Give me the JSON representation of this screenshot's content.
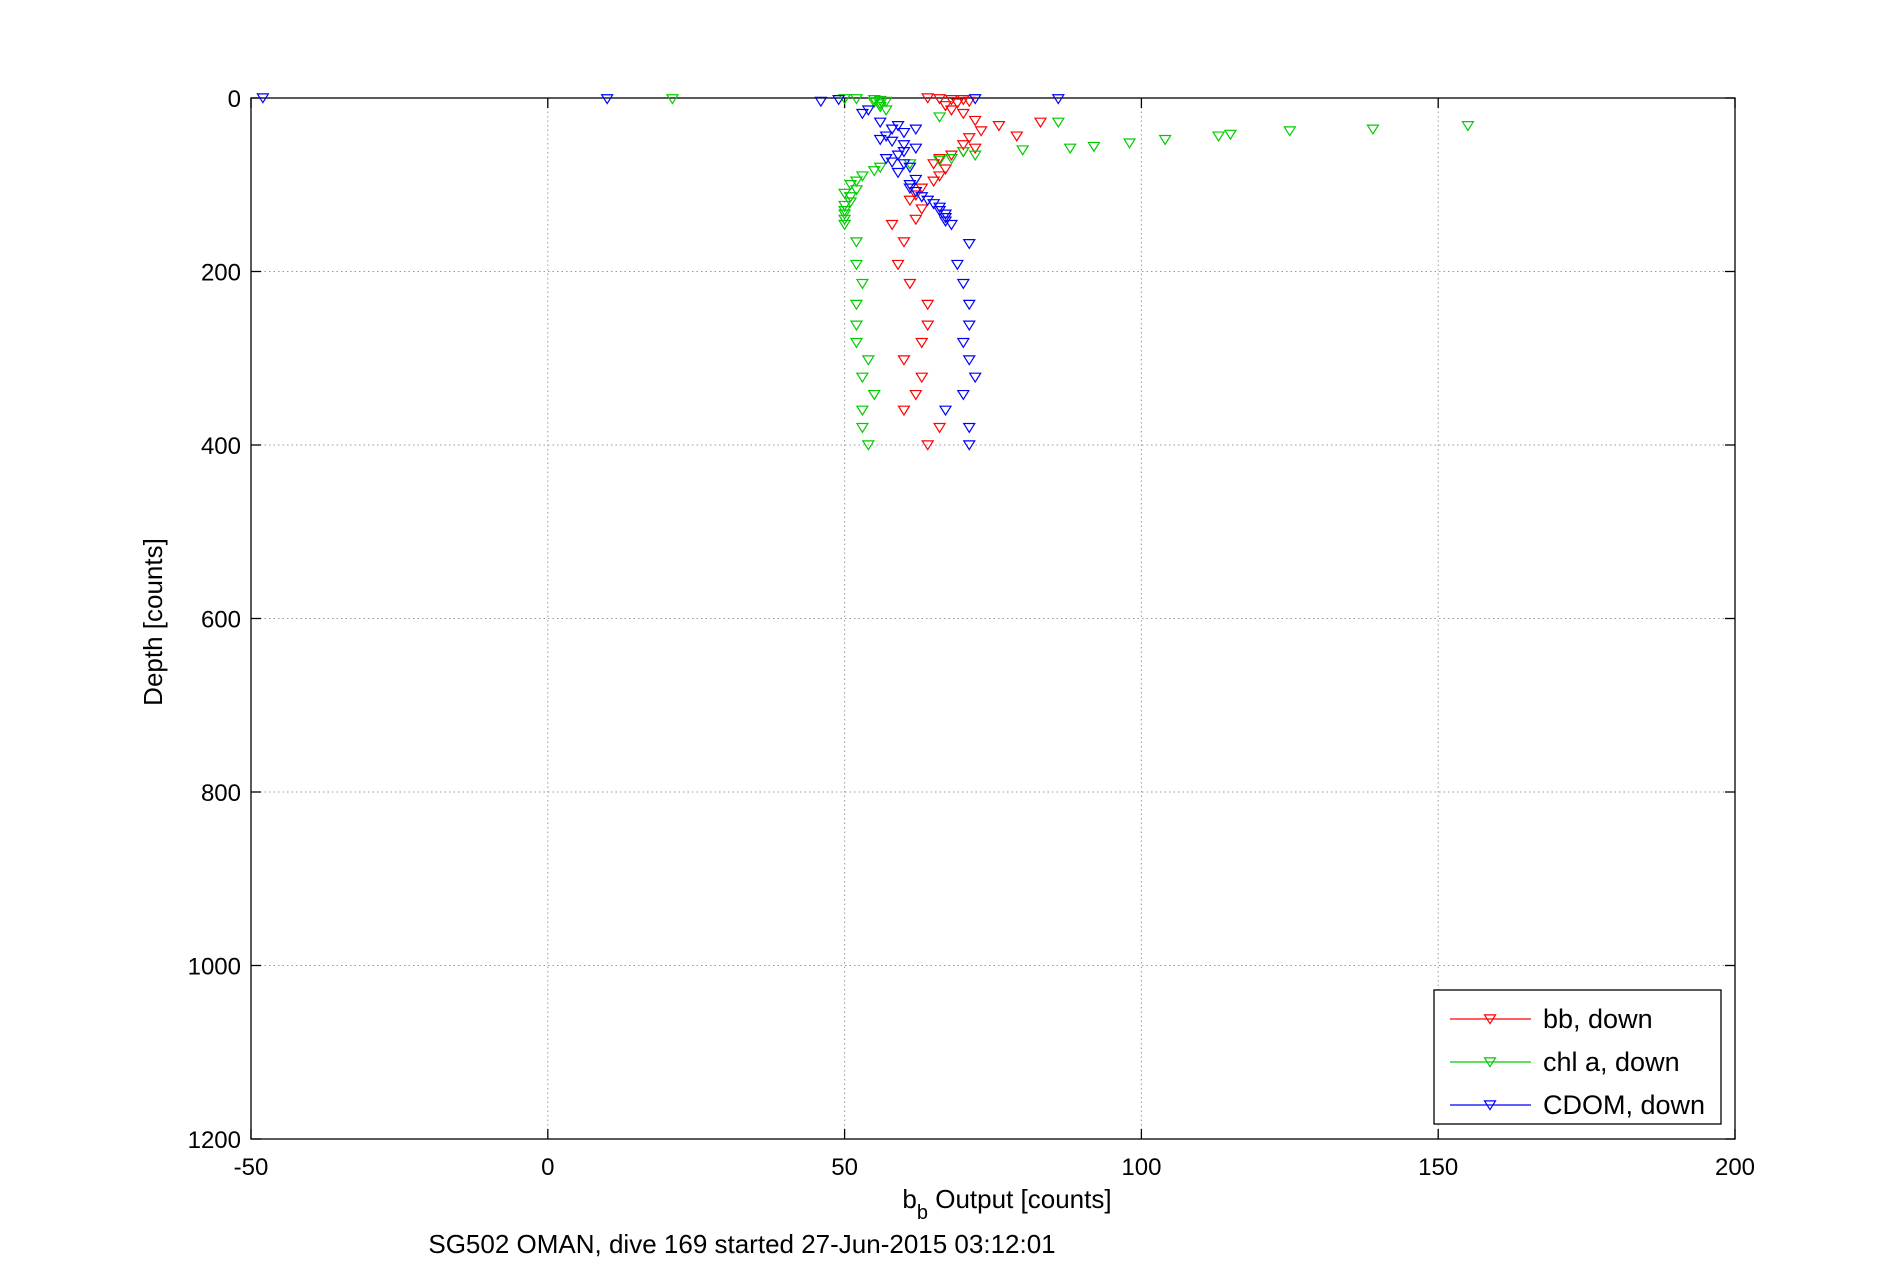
{
  "chart_data": {
    "type": "scatter",
    "title": "",
    "subtitle": "SG502 OMAN, dive 169 started 27-Jun-2015 03:12:01",
    "xlabel_main": "b",
    "xlabel_sub": "b",
    "xlabel_rest": " Output [counts]",
    "ylabel": "Depth [counts]",
    "xlim": [
      -50,
      200
    ],
    "ylim": [
      0,
      1200
    ],
    "y_reversed": true,
    "x_ticks": [
      -50,
      0,
      50,
      100,
      150,
      200
    ],
    "y_ticks": [
      0,
      200,
      400,
      600,
      800,
      1000,
      1200
    ],
    "grid": true,
    "legend_position": "bottom-right",
    "marker": "down-triangle",
    "series": [
      {
        "name": "bb, down",
        "color": "#ff0000",
        "points": [
          [
            64,
            0
          ],
          [
            66,
            1
          ],
          [
            68,
            2
          ],
          [
            70,
            2
          ],
          [
            71,
            4
          ],
          [
            69,
            6
          ],
          [
            67,
            9
          ],
          [
            68,
            14
          ],
          [
            70,
            18
          ],
          [
            72,
            26
          ],
          [
            73,
            38
          ],
          [
            71,
            46
          ],
          [
            70,
            54
          ],
          [
            72,
            58
          ],
          [
            70,
            62
          ],
          [
            68,
            66
          ],
          [
            66,
            70
          ],
          [
            65,
            76
          ],
          [
            67,
            82
          ],
          [
            66,
            90
          ],
          [
            65,
            96
          ],
          [
            63,
            104
          ],
          [
            62,
            112
          ],
          [
            61,
            118
          ],
          [
            63,
            128
          ],
          [
            62,
            140
          ],
          [
            58,
            146
          ],
          [
            60,
            166
          ],
          [
            59,
            192
          ],
          [
            61,
            214
          ],
          [
            64,
            238
          ],
          [
            64,
            262
          ],
          [
            63,
            282
          ],
          [
            60,
            302
          ],
          [
            63,
            322
          ],
          [
            62,
            342
          ],
          [
            60,
            360
          ],
          [
            66,
            380
          ],
          [
            64,
            400
          ],
          [
            76,
            32
          ],
          [
            79,
            44
          ],
          [
            83,
            28
          ]
        ]
      },
      {
        "name": "chl a, down",
        "color": "#00cc00",
        "points": [
          [
            21,
            1
          ],
          [
            50,
            1
          ],
          [
            52,
            1
          ],
          [
            55,
            2
          ],
          [
            56,
            3
          ],
          [
            57,
            4
          ],
          [
            55,
            5
          ],
          [
            56,
            7
          ],
          [
            56,
            10
          ],
          [
            57,
            14
          ],
          [
            66,
            22
          ],
          [
            86,
            28
          ],
          [
            155,
            32
          ],
          [
            139,
            36
          ],
          [
            125,
            38
          ],
          [
            115,
            42
          ],
          [
            113,
            44
          ],
          [
            104,
            48
          ],
          [
            98,
            52
          ],
          [
            92,
            56
          ],
          [
            88,
            58
          ],
          [
            80,
            60
          ],
          [
            70,
            62
          ],
          [
            72,
            66
          ],
          [
            68,
            70
          ],
          [
            66,
            72
          ],
          [
            61,
            76
          ],
          [
            56,
            80
          ],
          [
            55,
            84
          ],
          [
            53,
            90
          ],
          [
            52,
            96
          ],
          [
            51,
            100
          ],
          [
            52,
            106
          ],
          [
            50,
            110
          ],
          [
            51,
            114
          ],
          [
            51,
            120
          ],
          [
            50,
            124
          ],
          [
            50,
            130
          ],
          [
            50,
            134
          ],
          [
            50,
            140
          ],
          [
            50,
            146
          ],
          [
            52,
            166
          ],
          [
            52,
            192
          ],
          [
            53,
            214
          ],
          [
            52,
            238
          ],
          [
            52,
            262
          ],
          [
            52,
            282
          ],
          [
            54,
            302
          ],
          [
            53,
            322
          ],
          [
            55,
            342
          ],
          [
            53,
            360
          ],
          [
            53,
            380
          ],
          [
            54,
            400
          ]
        ]
      },
      {
        "name": "CDOM, down",
        "color": "#0000ff",
        "points": [
          [
            -48,
            0
          ],
          [
            10,
            1
          ],
          [
            46,
            4
          ],
          [
            49,
            2
          ],
          [
            72,
            1
          ],
          [
            86,
            1
          ],
          [
            54,
            14
          ],
          [
            53,
            18
          ],
          [
            56,
            28
          ],
          [
            59,
            32
          ],
          [
            58,
            36
          ],
          [
            62,
            36
          ],
          [
            60,
            40
          ],
          [
            57,
            44
          ],
          [
            56,
            48
          ],
          [
            58,
            50
          ],
          [
            60,
            54
          ],
          [
            62,
            58
          ],
          [
            60,
            62
          ],
          [
            59,
            66
          ],
          [
            57,
            70
          ],
          [
            58,
            74
          ],
          [
            60,
            76
          ],
          [
            61,
            80
          ],
          [
            59,
            86
          ],
          [
            62,
            94
          ],
          [
            61,
            100
          ],
          [
            61,
            104
          ],
          [
            62,
            108
          ],
          [
            63,
            114
          ],
          [
            64,
            118
          ],
          [
            65,
            122
          ],
          [
            66,
            126
          ],
          [
            66,
            130
          ],
          [
            67,
            134
          ],
          [
            67,
            138
          ],
          [
            67,
            142
          ],
          [
            68,
            146
          ],
          [
            71,
            168
          ],
          [
            69,
            192
          ],
          [
            70,
            214
          ],
          [
            71,
            238
          ],
          [
            71,
            262
          ],
          [
            70,
            282
          ],
          [
            71,
            302
          ],
          [
            72,
            322
          ],
          [
            70,
            342
          ],
          [
            67,
            360
          ],
          [
            71,
            380
          ],
          [
            71,
            400
          ]
        ]
      }
    ]
  }
}
